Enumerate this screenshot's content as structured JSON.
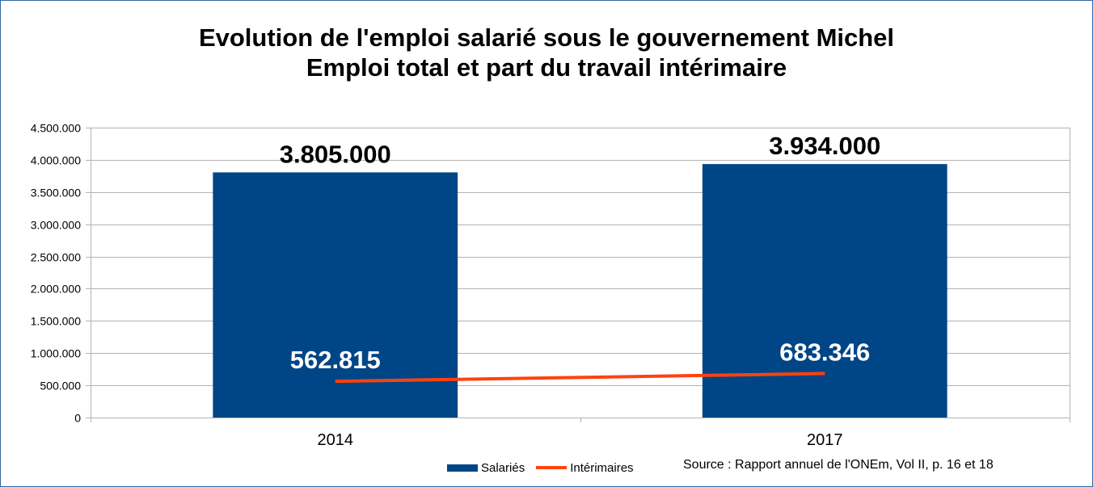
{
  "chart_data": {
    "type": "bar",
    "title": "Evolution de l'emploi salarié sous le gouvernement Michel",
    "subtitle": "Emploi total et part du travail intérimaire",
    "categories": [
      "2014",
      "2017"
    ],
    "series": [
      {
        "name": "Salariés",
        "kind": "bar",
        "color": "#004586",
        "values": [
          3805000,
          3934000
        ],
        "labels": [
          "3.805.000",
          "3.934.000"
        ]
      },
      {
        "name": "Intérimaires",
        "kind": "line",
        "color": "#ff420e",
        "values": [
          562815,
          683346
        ],
        "labels": [
          "562.815",
          "683.346"
        ]
      }
    ],
    "ylim": [
      0,
      4500000
    ],
    "yticks": [
      "0",
      "500.000",
      "1.000.000",
      "1.500.000",
      "2.000.000",
      "2.500.000",
      "3.000.000",
      "3.500.000",
      "4.000.000",
      "4.500.000"
    ],
    "grid": true,
    "legend": "bottom",
    "source": "Source : Rapport annuel de l'ONEm, Vol II, p. 16 et 18"
  }
}
